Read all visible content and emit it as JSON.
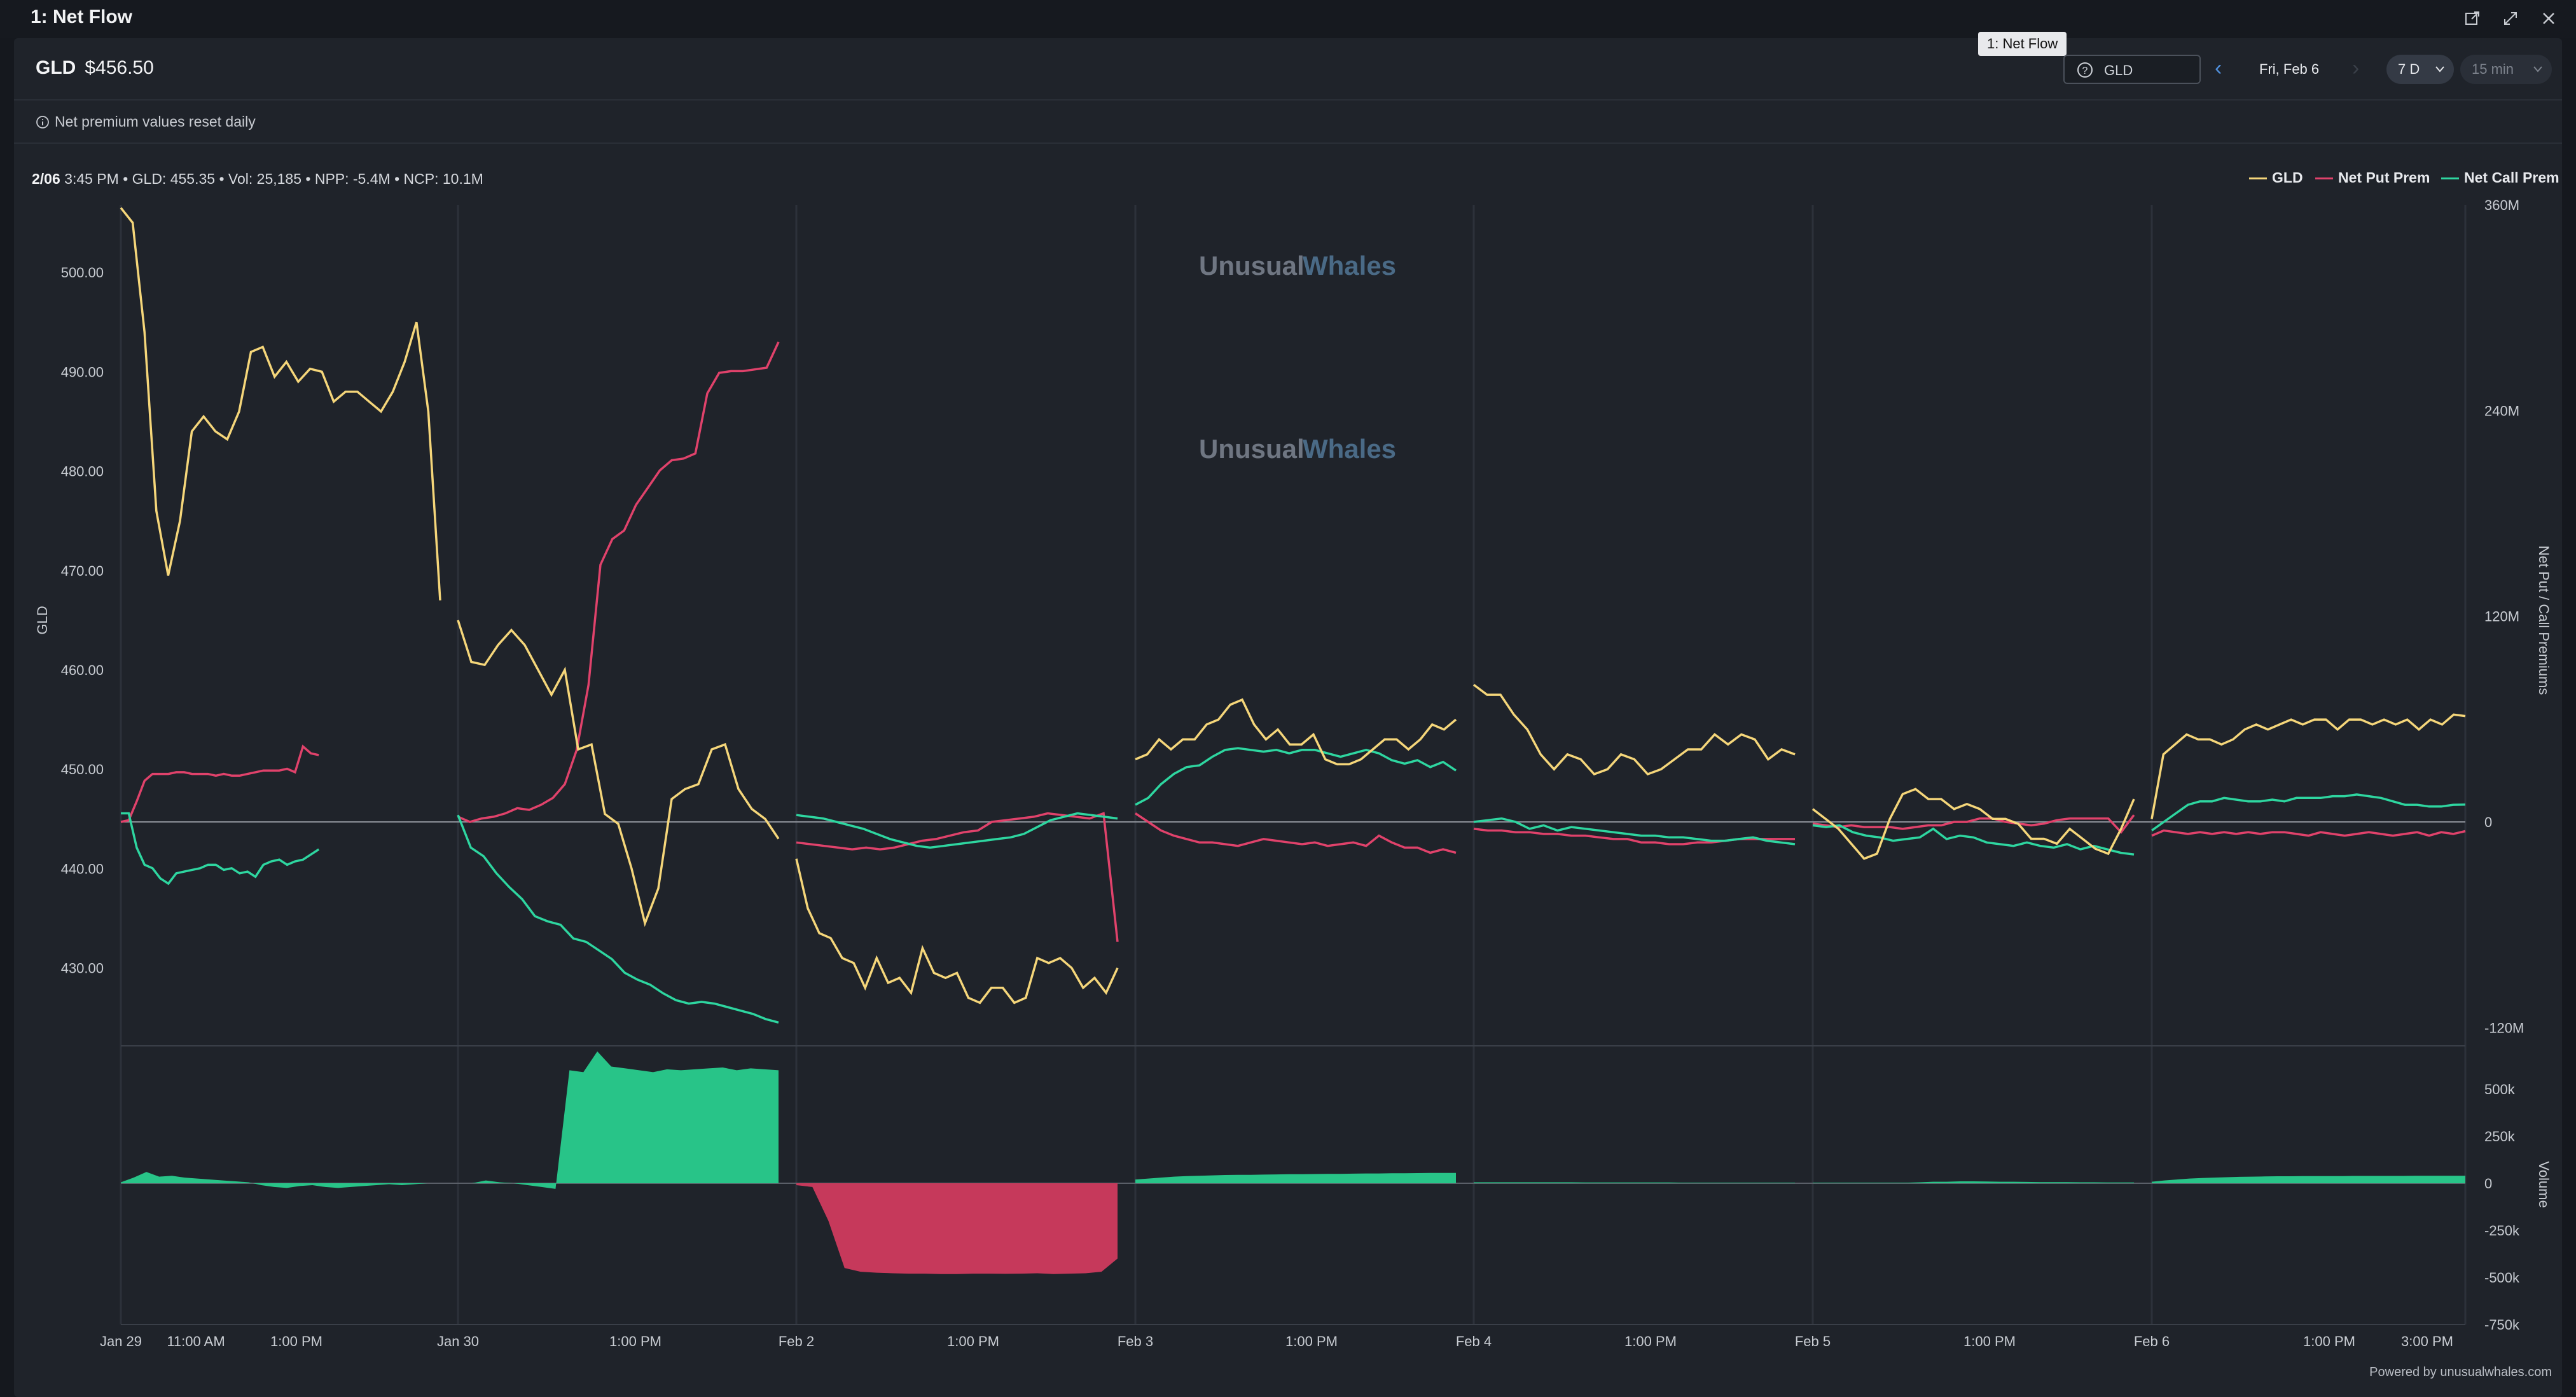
{
  "window": {
    "title": "1: Net Flow",
    "tab_tooltip": "1: Net Flow"
  },
  "header": {
    "ticker": "GLD",
    "price": "$456.50",
    "search_value": "GLD",
    "date_label": "Fri, Feb 6",
    "range": "7 D",
    "interval": "15 min",
    "note": "Net premium values reset daily"
  },
  "status": {
    "date": "2/06",
    "text": "3:45 PM • GLD: 455.35 • Vol: 25,185 • NPP: -5.4M • NCP: 10.1M"
  },
  "legend": [
    {
      "label": "GLD",
      "color": "#f5d67a"
    },
    {
      "label": "Net Put Prem",
      "color": "#e0426b"
    },
    {
      "label": "Net Call Prem",
      "color": "#2ed6a0"
    }
  ],
  "watermark": {
    "word1": "Unusual",
    "word2": "Whales"
  },
  "footer": "Powered by unusualwhales.com",
  "colors": {
    "gld": "#f5d67a",
    "put": "#e0426b",
    "call": "#2ed6a0",
    "vol_pos": "#28c488",
    "vol_neg": "#c6395b"
  },
  "chart_data": {
    "type": "line",
    "title": "Net Flow",
    "left_axis": {
      "label": "GLD",
      "ticks": [
        "500.00",
        "490.00",
        "480.00",
        "470.00",
        "460.00",
        "450.00",
        "440.00",
        "430.00"
      ],
      "range": [
        423.7,
        506.8
      ]
    },
    "right_axis": {
      "label": "Net Put / Call Premiums",
      "ticks": [
        "360M",
        "240M",
        "120M",
        "0",
        "-120M"
      ],
      "range": [
        -120,
        360
      ],
      "unit": "M"
    },
    "volume_axis": {
      "label": "Volume",
      "ticks": [
        "500k",
        "250k",
        "0",
        "-250k",
        "-500k",
        "-750k"
      ],
      "range": [
        -750,
        750
      ],
      "unit": "k"
    },
    "x_labels": [
      "Jan 29",
      "11:00 AM",
      "1:00 PM",
      "Jan 30",
      "1:00 PM",
      "Feb 2",
      "1:00 PM",
      "Feb 3",
      "1:00 PM",
      "Feb 4",
      "1:00 PM",
      "Feb 5",
      "1:00 PM",
      "Feb 6",
      "1:00 PM",
      "3:00 PM"
    ],
    "days": [
      {
        "name": "Jan 29",
        "gld": [
          506.5,
          505,
          494,
          476,
          469.5,
          475,
          484,
          485.5,
          484,
          483.2,
          486,
          492,
          492.5,
          489.5,
          491,
          489,
          490.3,
          490,
          487,
          488,
          488,
          487,
          486,
          488,
          491,
          495,
          486,
          467
        ],
        "put": [
          0,
          1,
          12,
          24,
          28,
          28,
          28,
          29,
          29,
          28,
          28,
          28,
          27,
          28,
          27,
          27,
          28,
          29,
          30,
          30,
          30,
          31,
          29,
          44,
          40,
          39
        ],
        "call": [
          5,
          5,
          -15,
          -25,
          -27,
          -33,
          -36,
          -30,
          -29,
          -28,
          -27,
          -25,
          -25,
          -28,
          -27,
          -30,
          -29,
          -32,
          -25,
          -23,
          -22,
          -25,
          -23,
          -22,
          -19,
          -16
        ],
        "vol": [
          5,
          30,
          60,
          35,
          40,
          30,
          25,
          20,
          15,
          10,
          5,
          -10,
          -20,
          -25,
          -15,
          -10,
          -20,
          -25,
          -20,
          -15,
          -10,
          -5,
          -10,
          -5,
          0,
          0
        ]
      },
      {
        "name": "Jan 30",
        "gld": [
          465,
          460.8,
          460.5,
          462.5,
          464,
          462.5,
          460,
          457.5,
          460,
          452,
          452.5,
          445.5,
          444.5,
          440,
          434.5,
          438,
          447,
          448,
          448.5,
          452,
          452.5,
          448,
          446,
          445,
          443
        ],
        "put": [
          3,
          0,
          2,
          3,
          5,
          8,
          7,
          10,
          14,
          22,
          42,
          80,
          150,
          165,
          170,
          185,
          195,
          205,
          211,
          212,
          215,
          250,
          262,
          263,
          263,
          264,
          265,
          280
        ],
        "call": [
          4,
          -15,
          -20,
          -30,
          -38,
          -45,
          -55,
          -58,
          -60,
          -68,
          -70,
          -75,
          -80,
          -88,
          -92,
          -95,
          -100,
          -104,
          -106,
          -105,
          -106,
          -108,
          -110,
          -112,
          -115,
          -117
        ],
        "vol": [
          0,
          0,
          15,
          5,
          0,
          -10,
          -20,
          -30,
          600,
          590,
          700,
          620,
          610,
          600,
          590,
          605,
          600,
          605,
          610,
          615,
          600,
          610,
          605,
          600
        ]
      },
      {
        "name": "Feb 2",
        "gld": [
          441,
          436,
          433.5,
          433,
          431,
          430.5,
          428,
          431,
          428.5,
          429,
          427.5,
          432,
          429.5,
          429,
          429.5,
          427,
          426.5,
          428,
          428,
          426.5,
          427,
          431,
          430.5,
          431,
          430,
          428,
          429,
          427.5,
          430
        ],
        "put": [
          -12,
          -13,
          -14,
          -15,
          -16,
          -15,
          -16,
          -15,
          -13,
          -11,
          -10,
          -8,
          -6,
          -5,
          0,
          1,
          2,
          3,
          5,
          4,
          3,
          2,
          5,
          -70
        ],
        "call": [
          4,
          3,
          2,
          0,
          -2,
          -4,
          -7,
          -10,
          -12,
          -14,
          -15,
          -14,
          -13,
          -12,
          -11,
          -10,
          -9,
          -7,
          -3,
          1,
          3,
          5,
          4,
          3,
          2
        ],
        "vol": [
          -10,
          -20,
          -200,
          -450,
          -470,
          -475,
          -478,
          -480,
          -480,
          -482,
          -482,
          -480,
          -480,
          -481,
          -480,
          -478,
          -482,
          -480,
          -478,
          -470,
          -400
        ]
      },
      {
        "name": "Feb 3",
        "gld": [
          451,
          451.5,
          453,
          452,
          453,
          453,
          454.5,
          455,
          456.5,
          457,
          454.5,
          453,
          454,
          452.5,
          452.5,
          453.5,
          451,
          450.5,
          450.5,
          451,
          452,
          453,
          453,
          452,
          453,
          454.5,
          454,
          455
        ],
        "put": [
          5,
          0,
          -5,
          -8,
          -10,
          -12,
          -12,
          -13,
          -14,
          -12,
          -10,
          -11,
          -12,
          -13,
          -12,
          -14,
          -13,
          -12,
          -14,
          -8,
          -12,
          -15,
          -15,
          -18,
          -16,
          -18
        ],
        "call": [
          10,
          14,
          22,
          28,
          32,
          33,
          38,
          42,
          43,
          42,
          41,
          42,
          40,
          42,
          42,
          40,
          38,
          40,
          42,
          40,
          36,
          34,
          36,
          32,
          35,
          30
        ],
        "vol": [
          20,
          25,
          30,
          35,
          38,
          40,
          42,
          44,
          45,
          45,
          46,
          47,
          48,
          48,
          49,
          50,
          50,
          51,
          52,
          52,
          53,
          53,
          54,
          55,
          55,
          55
        ]
      },
      {
        "name": "Feb 4",
        "gld": [
          458.5,
          457.5,
          457.5,
          455.5,
          454,
          451.5,
          450,
          451.5,
          451,
          449.5,
          450,
          451.5,
          451,
          449.5,
          450,
          451,
          452,
          452,
          453.5,
          452.5,
          453.5,
          453,
          451,
          452,
          451.5
        ],
        "put": [
          -4,
          -5,
          -5,
          -6,
          -6,
          -7,
          -7,
          -8,
          -8,
          -9,
          -10,
          -10,
          -12,
          -12,
          -13,
          -13,
          -12,
          -12,
          -11,
          -10,
          -10,
          -10,
          -10,
          -10
        ],
        "call": [
          0,
          1,
          2,
          0,
          -4,
          -2,
          -5,
          -3,
          -4,
          -5,
          -6,
          -7,
          -8,
          -8,
          -9,
          -9,
          -10,
          -11,
          -11,
          -10,
          -9,
          -11,
          -12,
          -13
        ],
        "vol": [
          5,
          5,
          5,
          5,
          5,
          5,
          5,
          5,
          4,
          4,
          4,
          4,
          4,
          4,
          4,
          3,
          3,
          3,
          3,
          3,
          3,
          3,
          3,
          3
        ]
      },
      {
        "name": "Feb 5",
        "gld": [
          446,
          445,
          444,
          442.5,
          441,
          441.5,
          445,
          447.5,
          448,
          447,
          447,
          446,
          446.5,
          446,
          445,
          445,
          444.5,
          443,
          443,
          442.5,
          444,
          443,
          442,
          441.5,
          444,
          447
        ],
        "put": [
          -1,
          -2,
          -3,
          -2,
          -3,
          -3,
          -3,
          -4,
          -3,
          -2,
          -2,
          0,
          0,
          2,
          2,
          0,
          -1,
          -2,
          -1,
          1,
          2,
          2,
          2,
          2,
          -6,
          4
        ],
        "call": [
          -2,
          -3,
          -2,
          -6,
          -8,
          -9,
          -11,
          -10,
          -9,
          -4,
          -10,
          -8,
          -9,
          -12,
          -13,
          -14,
          -12,
          -14,
          -15,
          -13,
          -16,
          -14,
          -16,
          -18,
          -19
        ],
        "vol": [
          3,
          3,
          3,
          3,
          3,
          3,
          3,
          3,
          5,
          8,
          8,
          10,
          10,
          9,
          8,
          8,
          7,
          6,
          6,
          6,
          5,
          5,
          4,
          4,
          4
        ]
      },
      {
        "name": "Feb 6",
        "gld": [
          445,
          451.5,
          452.5,
          453.5,
          453,
          453,
          452.5,
          453,
          454,
          454.5,
          454,
          454.5,
          455,
          454.5,
          455,
          455,
          454,
          455,
          455,
          454.5,
          455,
          454.5,
          455,
          454,
          455,
          454.5,
          455.5,
          455.35
        ],
        "put": [
          -8,
          -5,
          -6,
          -7,
          -6,
          -7,
          -6,
          -7,
          -6,
          -7,
          -6,
          -6,
          -7,
          -8,
          -6,
          -7,
          -8,
          -7,
          -6,
          -7,
          -8,
          -7,
          -6,
          -8,
          -6,
          -7,
          -5.4
        ],
        "call": [
          -5,
          0,
          5,
          10,
          12,
          12,
          14,
          13,
          12,
          12,
          13,
          12,
          14,
          14,
          14,
          15,
          15,
          16,
          15,
          14,
          12,
          10,
          10,
          9,
          9,
          10,
          10.1
        ],
        "vol": [
          8,
          15,
          20,
          25,
          28,
          30,
          32,
          34,
          35,
          36,
          37,
          37,
          38,
          38,
          38,
          38,
          39,
          39,
          39,
          39,
          39,
          40,
          40,
          40,
          40,
          40
        ]
      }
    ]
  }
}
